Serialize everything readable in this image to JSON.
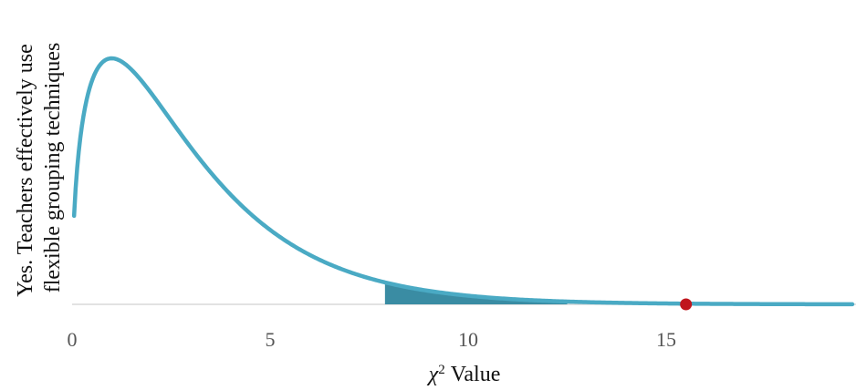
{
  "chart_data": {
    "type": "area",
    "title": "",
    "distribution": "chi-square",
    "degrees_of_freedom": 3,
    "x_range": [
      0,
      19.7
    ],
    "x_ticks": [
      0,
      5,
      10,
      15
    ],
    "x_tick_labels": [
      "0",
      "5",
      "10",
      "15"
    ],
    "xlabel_symbol": "χ",
    "xlabel_superscript": "2",
    "xlabel_suffix": "Value",
    "ylabel_lines": [
      "Yes. Teachers effectively use",
      "flexible grouping techniques"
    ],
    "y_ticks_shown": false,
    "critical_value": 7.9,
    "shaded_region": [
      7.9,
      12.5
    ],
    "test_statistic": 15.5,
    "grid": false,
    "colors": {
      "curve": "#4aaac4",
      "shaded": "#3a8ca3",
      "marker": "#c0151d",
      "baseline": "#d9d9d9",
      "tick_text": "#555555",
      "title_text": "#111111"
    }
  }
}
